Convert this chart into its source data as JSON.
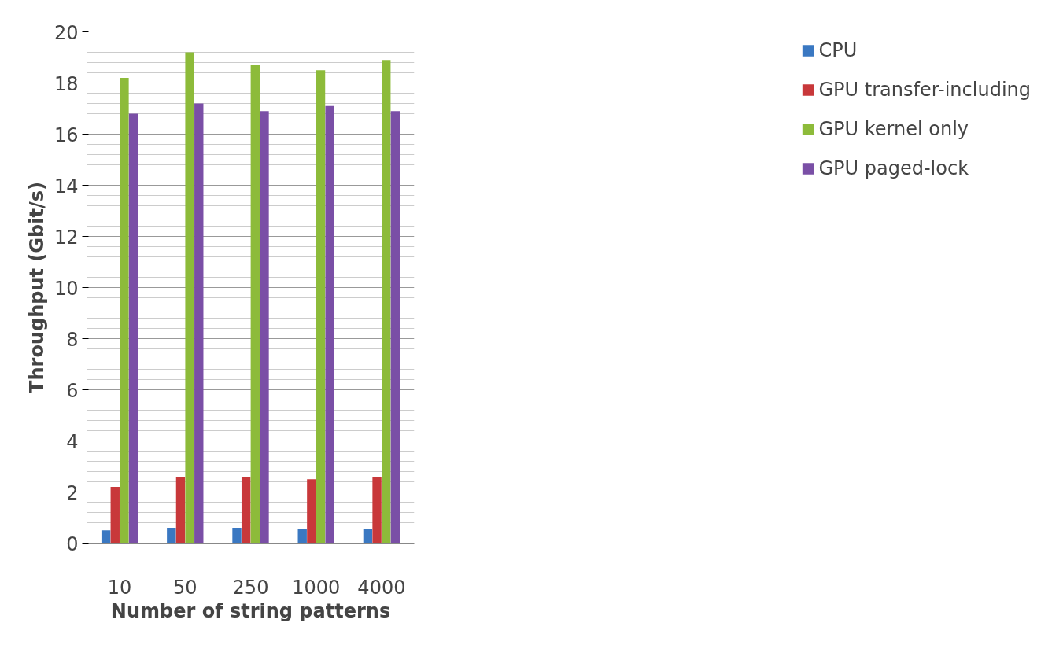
{
  "chart_data": {
    "type": "bar",
    "xlabel": "Number of string patterns",
    "ylabel": "Throughput (Gbit/s)",
    "categories": [
      "10",
      "50",
      "250",
      "1000",
      "4000"
    ],
    "series": [
      {
        "name": "CPU",
        "color": "#3a78c2",
        "values": [
          0.5,
          0.6,
          0.6,
          0.55,
          0.55
        ]
      },
      {
        "name": "GPU transfer-including",
        "color": "#c8383a",
        "values": [
          2.2,
          2.6,
          2.6,
          2.5,
          2.6
        ]
      },
      {
        "name": "GPU kernel only",
        "color": "#8dbb3a",
        "values": [
          18.2,
          19.2,
          18.7,
          18.5,
          18.9
        ]
      },
      {
        "name": "GPU paged-lock",
        "color": "#7a4fa6",
        "values": [
          16.8,
          17.2,
          16.9,
          17.1,
          16.9
        ]
      }
    ],
    "ylim": [
      0,
      20
    ],
    "yticks": [
      0,
      2,
      4,
      6,
      8,
      10,
      12,
      14,
      16,
      18,
      20
    ],
    "grid": "y",
    "legend": "right"
  }
}
